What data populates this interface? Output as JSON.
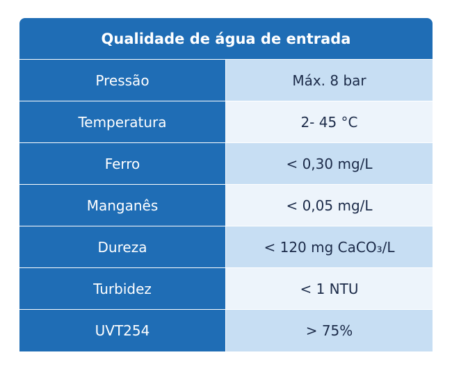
{
  "header": {
    "title": "Qualidade de água de entrada"
  },
  "table": {
    "rows": [
      [
        "Pressão",
        "Máx. 8 bar"
      ],
      [
        "Temperatura",
        "2- 45 °C"
      ],
      [
        "Ferro",
        "< 0,30 mg/L"
      ],
      [
        "Manganês",
        "< 0,05 mg/L"
      ],
      [
        "Dureza",
        "< 120 mg CaCO₃/L"
      ],
      [
        "Turbidez",
        "< 1 NTU"
      ],
      [
        "UVT254",
        "> 75%"
      ]
    ]
  }
}
